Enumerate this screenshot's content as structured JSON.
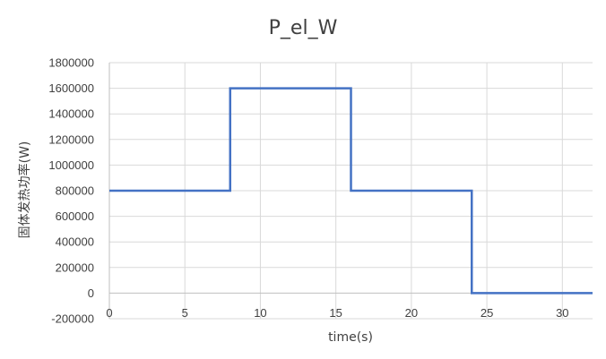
{
  "chart_data": {
    "type": "line",
    "title": "P_el_W",
    "xlabel": "time(s)",
    "ylabel": "固体发热功率(W)",
    "xlim": [
      0,
      32
    ],
    "ylim": [
      -200000,
      1800000
    ],
    "x_ticks": [
      "0",
      "5",
      "10",
      "15",
      "20",
      "25",
      "30"
    ],
    "x_tick_values": [
      0,
      5,
      10,
      15,
      20,
      25,
      30
    ],
    "y_ticks": [
      "1800000",
      "1600000",
      "1400000",
      "1200000",
      "1000000",
      "800000",
      "600000",
      "400000",
      "200000",
      "0",
      "-200000"
    ],
    "y_tick_values": [
      1800000,
      1600000,
      1400000,
      1200000,
      1000000,
      800000,
      600000,
      400000,
      200000,
      0,
      -200000
    ],
    "grid": true,
    "legend": "none",
    "series": [
      {
        "color": "#4472c4",
        "x": [
          0,
          8,
          8,
          16,
          16,
          24,
          24,
          32
        ],
        "y": [
          800000,
          800000,
          1600000,
          1600000,
          800000,
          800000,
          0,
          0
        ]
      }
    ]
  }
}
